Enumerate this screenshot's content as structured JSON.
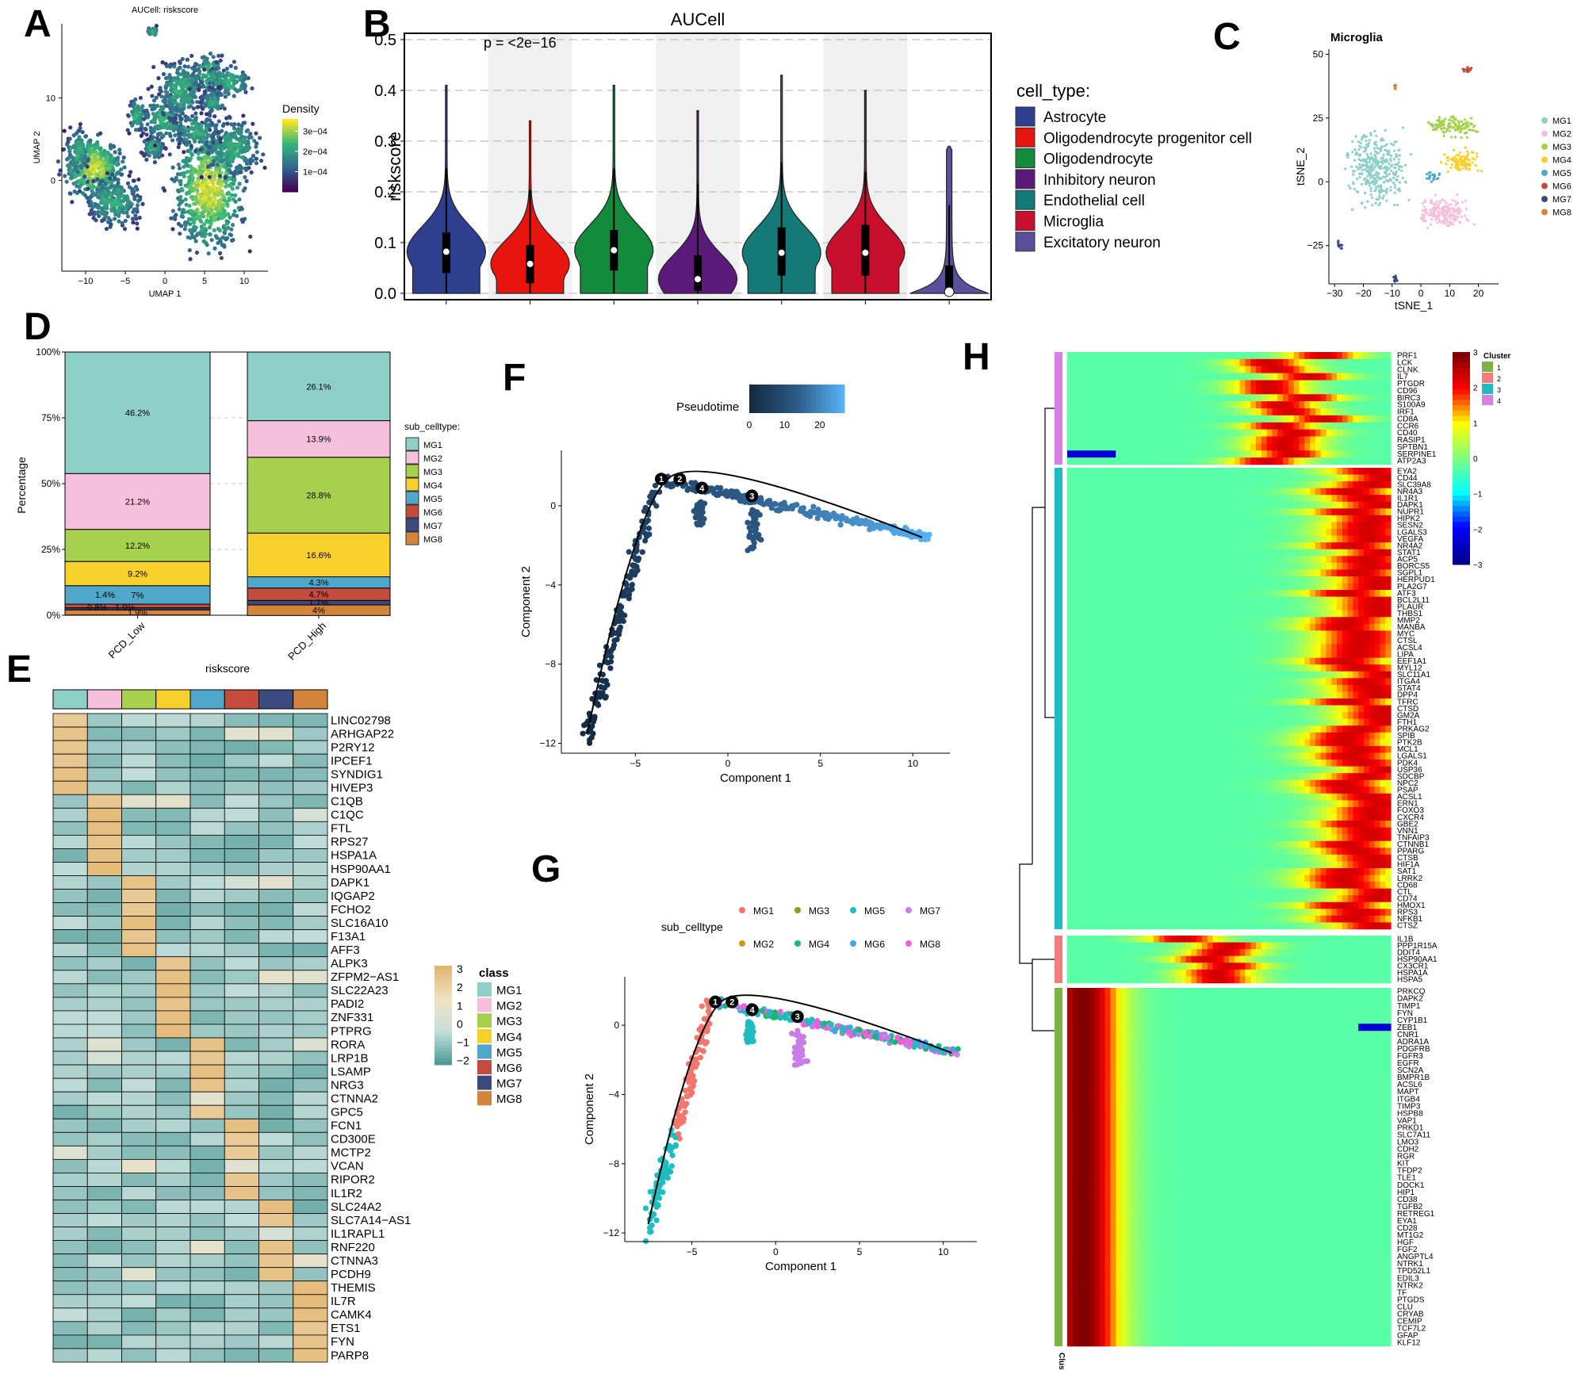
{
  "panel_letters": {
    "A": "A",
    "B": "B",
    "C": "C",
    "D": "D",
    "E": "E",
    "F": "F",
    "G": "G",
    "H": "H"
  },
  "chart_data": [
    {
      "id": "A",
      "type": "scatter",
      "title": "AUCell: riskscore",
      "xlabel": "UMAP 1",
      "ylabel": "UMAP 2",
      "xticks": [
        "−10",
        "−5",
        "0",
        "5",
        "10"
      ],
      "xtick_values": [
        -10,
        -5,
        0,
        5,
        10
      ],
      "yticks": [
        "0",
        "10"
      ],
      "ytick_values": [
        0,
        10
      ],
      "xlim": [
        -13,
        13
      ],
      "ylim": [
        -11,
        19
      ],
      "legend_title": "Density",
      "legend_labels": [
        "3e−04",
        "2e−04",
        "1e−04"
      ],
      "legend_values": [
        0.0003,
        0.0002,
        0.0001
      ],
      "colors": [
        "#440154",
        "#31688e",
        "#35b779",
        "#fde725"
      ]
    },
    {
      "id": "B",
      "type": "violin",
      "title": "AUCell",
      "ylabel": "riskscore",
      "annotation": "p = <2e−16",
      "ylim": [
        0,
        0.5
      ],
      "yticks": [
        "0.0",
        "0.1",
        "0.2",
        "0.3",
        "0.4",
        "0.5"
      ],
      "ytick_values": [
        0,
        0.1,
        0.2,
        0.3,
        0.4,
        0.5
      ],
      "legend_title": "cell_type:",
      "categories": [
        "Astrocyte",
        "Oligodendrocyte progenitor cell",
        "Oligodendrocyte",
        "Inhibitory neuron",
        "Endothelial cell",
        "Microglia",
        "Excitatory neuron"
      ],
      "colors": [
        "#2f3f8f",
        "#e8150f",
        "#138a3c",
        "#5b1a7a",
        "#137a78",
        "#c8102e",
        "#5a4f9a"
      ],
      "medians": [
        0.082,
        0.058,
        0.085,
        0.028,
        0.08,
        0.08,
        0.003
      ],
      "q1": [
        0.04,
        0.02,
        0.045,
        0.005,
        0.035,
        0.035,
        0.0
      ],
      "q3": [
        0.12,
        0.095,
        0.125,
        0.075,
        0.13,
        0.135,
        0.055
      ],
      "max": [
        0.41,
        0.34,
        0.41,
        0.36,
        0.43,
        0.4,
        0.29
      ]
    },
    {
      "id": "C",
      "type": "scatter",
      "title": "Microglia",
      "xlabel": "tSNE_1",
      "ylabel": "tSNE_2",
      "xticks": [
        "−30",
        "−20",
        "−10",
        "0",
        "10",
        "20"
      ],
      "xtick_values": [
        -30,
        -20,
        -10,
        0,
        10,
        20
      ],
      "yticks": [
        "−25",
        "0",
        "25",
        "50"
      ],
      "ytick_values": [
        -25,
        0,
        25,
        50
      ],
      "xlim": [
        -32,
        27
      ],
      "ylim": [
        -40,
        52
      ],
      "legend": [
        "MG1",
        "MG2",
        "MG3",
        "MG4",
        "MG5",
        "MG6",
        "MG7",
        "MG8"
      ],
      "colors": [
        "#8ecfc7",
        "#f6bfdc",
        "#a7d04e",
        "#f8d02c",
        "#4fa7c9",
        "#c44c3e",
        "#3b4a7e",
        "#d2853b"
      ]
    },
    {
      "id": "D",
      "type": "bar",
      "ylabel": "Percentage",
      "xlabel": "riskscore",
      "categories": [
        "PCD_Low",
        "PCD_High"
      ],
      "yticks": [
        "0%",
        "25%",
        "50%",
        "75%",
        "100%"
      ],
      "ytick_values": [
        0,
        25,
        50,
        75,
        100
      ],
      "legend_title": "sub_celltype:",
      "series": [
        {
          "name": "MG1",
          "values": [
            46.2,
            26.1
          ],
          "labels": [
            "46.2%",
            "26.1%"
          ]
        },
        {
          "name": "MG2",
          "values": [
            21.2,
            13.9
          ],
          "labels": [
            "21.2%",
            "13.9%"
          ]
        },
        {
          "name": "MG3",
          "values": [
            12.2,
            28.8
          ],
          "labels": [
            "12.2%",
            "28.8%"
          ]
        },
        {
          "name": "MG4",
          "values": [
            9.2,
            16.6
          ],
          "labels": [
            "9.2%",
            "16.6%"
          ]
        },
        {
          "name": "MG5",
          "values": [
            7,
            4.3
          ],
          "labels": [
            "7%",
            "4.3%"
          ]
        },
        {
          "name": "MG6",
          "values": [
            1.4,
            4.7
          ],
          "labels": [
            "1.4%",
            "4.7%"
          ]
        },
        {
          "name": "MG7",
          "values": [
            0.8,
            1.7
          ],
          "labels": [
            "0.8%",
            "1.7%"
          ]
        },
        {
          "name": "MG8",
          "values": [
            1.9,
            4
          ],
          "labels": [
            "1.9%",
            "4%"
          ]
        }
      ]
    },
    {
      "id": "E",
      "type": "heatmap",
      "legend_title": "class",
      "scale_ticks": [
        "3",
        "2",
        "1",
        "0",
        "−1",
        "−2"
      ],
      "scale_values": [
        3,
        2,
        1,
        0,
        -1,
        -2
      ],
      "columns": [
        "MG1",
        "MG2",
        "MG3",
        "MG4",
        "MG5",
        "MG6",
        "MG7",
        "MG8"
      ],
      "rows": [
        "LINC02798",
        "ARHGAP22",
        "P2RY12",
        "IPCEF1",
        "SYNDIG1",
        "HIVEP3",
        "C1QB",
        "C1QC",
        "FTL",
        "RPS27",
        "HSPA1A",
        "HSP90AA1",
        "DAPK1",
        "IQGAP2",
        "FCHO2",
        "SLC16A10",
        "F13A1",
        "AFF3",
        "ALPK3",
        "ZFPM2−AS1",
        "SLC22A23",
        "PADI2",
        "ZNF331",
        "PTPRG",
        "RORA",
        "LRP1B",
        "LSAMP",
        "NRG3",
        "CTNNA2",
        "GPC5",
        "FCN1",
        "CD300E",
        "MCTP2",
        "VCAN",
        "RIPOR2",
        "IL1R2",
        "SLC24A2",
        "SLC7A14−AS1",
        "IL1RAPL1",
        "RNF220",
        "CTNNA3",
        "PCDH9",
        "THEMIS",
        "IL7R",
        "CAMK4",
        "ETS1",
        "FYN",
        "PARP8"
      ]
    },
    {
      "id": "F",
      "type": "scatter",
      "xlabel": "Component 1",
      "ylabel": "Component 2",
      "legend_title": "Pseudotime",
      "legend_ticks": [
        "0",
        "10",
        "20"
      ],
      "legend_values": [
        0,
        10,
        20
      ],
      "xticks": [
        "−5",
        "0",
        "5",
        "10"
      ],
      "xtick_values": [
        -5,
        0,
        5,
        10
      ],
      "yticks": [
        "−12",
        "−8",
        "−4",
        "0"
      ],
      "ytick_values": [
        -12,
        -8,
        -4,
        0
      ],
      "xlim": [
        -9,
        12
      ],
      "ylim": [
        -12.5,
        2.8
      ],
      "branch_points": [
        "1",
        "2",
        "4",
        "3"
      ],
      "branch_x": [
        -3.6,
        -2.6,
        -1.4,
        1.3
      ],
      "branch_y": [
        1.35,
        1.35,
        0.9,
        0.5
      ]
    },
    {
      "id": "G",
      "type": "scatter",
      "xlabel": "Component 1",
      "ylabel": "Component 2",
      "legend_title": "sub_celltype",
      "legend": [
        "MG1",
        "MG3",
        "MG5",
        "MG7",
        "MG2",
        "MG4",
        "MG6",
        "MG8"
      ],
      "colors": [
        "#f0776d",
        "#7aa624",
        "#1fbcc0",
        "#c77ce7",
        "#c99a16",
        "#1ab56f",
        "#3fa3e8",
        "#f25fd0"
      ],
      "xticks": [
        "−5",
        "0",
        "5",
        "10"
      ],
      "xtick_values": [
        -5,
        0,
        5,
        10
      ],
      "yticks": [
        "−12",
        "−8",
        "−4",
        "0"
      ],
      "ytick_values": [
        -12,
        -8,
        -4,
        0
      ],
      "xlim": [
        -9,
        12
      ],
      "ylim": [
        -12.5,
        2.8
      ],
      "branch_points": [
        "1",
        "2",
        "4",
        "3"
      ],
      "branch_x": [
        -3.6,
        -2.6,
        -1.4,
        1.3
      ],
      "branch_y": [
        1.35,
        1.35,
        0.9,
        0.5
      ]
    },
    {
      "id": "H",
      "type": "heatmap",
      "legend_title": "Cluster",
      "cluster_label": "Cluster",
      "scale_ticks": [
        "3",
        "2",
        "1",
        "0",
        "−1",
        "−2",
        "−3"
      ],
      "scale_values": [
        3,
        2,
        1,
        0,
        -1,
        -2,
        -3
      ],
      "clusters": [
        "1",
        "2",
        "3",
        "4"
      ],
      "cluster_colors": [
        "#7cb342",
        "#f47c7c",
        "#1fbcc0",
        "#d87fe6"
      ],
      "cluster_genes": [
        [
          "PRF1",
          "LCK",
          "CLNK",
          "IL7",
          "PTGDR",
          "CD96",
          "BIRC3",
          "S100A9",
          "IRF1",
          "CD8A",
          "CCR6",
          "CD40",
          "RASIP1",
          "SPTBN1",
          "SERPINE1",
          "ATP2A3"
        ],
        [
          "EYA2",
          "CD44",
          "SLC39A8",
          "NR4A3",
          "IL1R1",
          "DAPK1",
          "NUPR1",
          "HIPK2",
          "SESN2",
          "LGALS3",
          "VEGFA",
          "NR4A2",
          "STAT1",
          "ACP5",
          "BORCS5",
          "SGPL1",
          "HERPUD1",
          "PLA2G7",
          "ATF3",
          "BCL2L11",
          "PLAUR",
          "THBS1",
          "MMP2",
          "MANBA",
          "MYC",
          "CTSL",
          "ACSL4",
          "LIPA",
          "EEF1A1",
          "MYL12",
          "SLC11A1",
          "ITGA4",
          "STAT4",
          "DPP4",
          "TFRC",
          "CTSD",
          "GM2A",
          "FTH1",
          "PRKAG2",
          "SPIB",
          "PTK2B",
          "MCL1",
          "LGALS1",
          "PDK4",
          "USP36",
          "SDCBP",
          "NPC2",
          "PSAP",
          "ACSL1",
          "ERN1",
          "FOXO3",
          "CXCR4",
          "GBE2",
          "VNN1",
          "TNFAIP3",
          "CTNNB1",
          "PPARG",
          "CTSB",
          "HIF1A",
          "SAT1",
          "LRRK2",
          "CD68",
          "CTL",
          "CD74",
          "HMOX1",
          "RPS3",
          "NFKB1",
          "CTSZ"
        ],
        [
          "IL1B",
          "PPP1R15A",
          "DDIT4",
          "HSP90AA1",
          "CX3CR1",
          "HSPA1A",
          "HSPA5"
        ],
        [
          "PRKCQ",
          "DAPK2",
          "TIMP1",
          "FYN",
          "CYP1B1",
          "ZEB1",
          "CNR1",
          "ADRA1A",
          "PDGFRB",
          "FGFR3",
          "EGFR",
          "SCN2A",
          "BMPR1B",
          "ACSL6",
          "MAPT",
          "ITGB4",
          "TIMP3",
          "HSPB8",
          "VAP1",
          "PRKD1",
          "SLC7A11",
          "LMO3",
          "CDH2",
          "RGR",
          "KIT",
          "TFDP2",
          "TLE1",
          "DOCK1",
          "HIP1",
          "CD38",
          "TGFB2",
          "RETREG1",
          "EYA1",
          "CD28",
          "MT1G2",
          "HGF",
          "FGF2",
          "ANGPTL4",
          "NTRK1",
          "TPD52L1",
          "EDIL3",
          "NTRK2",
          "TF",
          "PTGDS",
          "CLU",
          "CRYAB",
          "CEMIP",
          "TCF7L2",
          "GFAP",
          "KLF12"
        ]
      ]
    }
  ]
}
